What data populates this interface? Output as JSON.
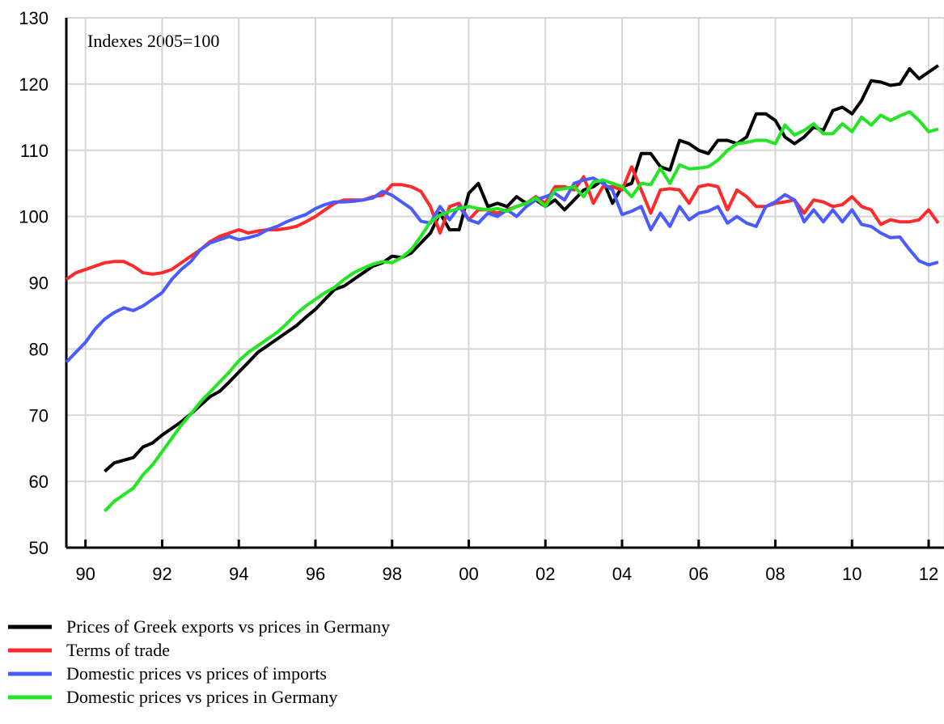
{
  "chart_data": {
    "type": "line",
    "annotation": "Indexes 2005=100",
    "x": [
      1990,
      1990.25,
      1990.5,
      1990.75,
      1991,
      1991.25,
      1991.5,
      1991.75,
      1992,
      1992.25,
      1992.5,
      1992.75,
      1993,
      1993.25,
      1993.5,
      1993.75,
      1994,
      1994.25,
      1994.5,
      1994.75,
      1995,
      1995.25,
      1995.5,
      1995.75,
      1996,
      1996.25,
      1996.5,
      1996.75,
      1997,
      1997.25,
      1997.5,
      1997.75,
      1998,
      1998.25,
      1998.5,
      1998.75,
      1999,
      1999.25,
      1999.5,
      1999.75,
      2000,
      2000.25,
      2000.5,
      2000.75,
      2001,
      2001.25,
      2001.5,
      2001.75,
      2002,
      2002.25,
      2002.5,
      2002.75,
      2003,
      2003.25,
      2003.5,
      2003.75,
      2004,
      2004.25,
      2004.5,
      2004.75,
      2005,
      2005.25,
      2005.5,
      2005.75,
      2006,
      2006.25,
      2006.5,
      2006.75,
      2007,
      2007.25,
      2007.5,
      2007.75,
      2008,
      2008.25,
      2008.5,
      2008.75,
      2009,
      2009.25,
      2009.5,
      2009.75,
      2010,
      2010.25,
      2010.5,
      2010.75,
      2011,
      2011.25,
      2011.5,
      2011.75,
      2012,
      2012.25,
      2012.5,
      2012.75
    ],
    "series": [
      {
        "name": "Prices of Greek exports vs prices in Germany",
        "color": "#000000",
        "values": [
          null,
          null,
          null,
          null,
          61.5,
          62.8,
          63.2,
          63.6,
          65.2,
          65.8,
          67,
          68,
          69,
          70.2,
          71.5,
          72.8,
          73.6,
          75,
          76.5,
          78,
          79.5,
          80.5,
          81.5,
          82.5,
          83.5,
          84.8,
          86,
          87.5,
          89,
          89.5,
          90.5,
          91.5,
          92.5,
          93,
          94,
          93.8,
          94.5,
          96,
          97.5,
          100.5,
          98,
          98,
          103.5,
          105,
          101.5,
          102,
          101.5,
          103,
          102,
          102.5,
          101.5,
          102.5,
          101,
          102.5,
          104,
          104.5,
          105.5,
          102,
          104.5,
          105,
          109.5,
          109.5,
          107.5,
          107,
          111.5,
          111,
          110,
          109.5,
          111.5,
          111.5,
          111,
          112,
          115.5,
          115.5,
          114.5,
          112,
          111,
          112,
          113.5,
          113,
          116,
          116.5,
          115.5,
          117.5,
          120.5,
          120.3,
          119.8,
          120,
          122.3,
          120.8,
          121.8,
          122.8
        ]
      },
      {
        "name": "Terms of trade",
        "color": "#ff2a2a",
        "values": [
          90.5,
          91.5,
          92,
          92.5,
          93,
          93.2,
          93.2,
          92.5,
          91.5,
          91.3,
          91.5,
          92,
          93,
          94,
          95,
          96.2,
          97,
          97.5,
          98,
          97.5,
          97.8,
          98,
          98,
          98.2,
          98.5,
          99.2,
          100,
          101,
          102,
          102.5,
          102.5,
          102.5,
          103,
          103.2,
          104.8,
          104.8,
          104.5,
          103.8,
          101.5,
          97.5,
          101.5,
          102,
          99.5,
          101,
          101,
          100.5,
          101,
          101.5,
          102,
          103,
          102,
          104.5,
          104.5,
          104,
          106,
          102,
          104.5,
          104.5,
          104,
          107.5,
          104,
          100.5,
          104,
          104.2,
          104,
          102,
          104.5,
          104.8,
          104.5,
          101,
          104,
          103,
          101.5,
          101.5,
          102,
          102.2,
          102.5,
          100.5,
          102.5,
          102.2,
          101.5,
          101.8,
          103,
          101.5,
          101,
          98.8,
          99.5,
          99.2,
          99.2,
          99.5,
          101,
          99
        ]
      },
      {
        "name": "Domestic prices vs prices of imports",
        "color": "#4a5cff",
        "values": [
          78,
          79.5,
          81,
          83,
          84.5,
          85.5,
          86.2,
          85.8,
          86.5,
          87.5,
          88.5,
          90.5,
          92,
          93.2,
          95,
          96,
          96.5,
          97,
          96.5,
          96.8,
          97.2,
          98,
          98.5,
          99.2,
          99.8,
          100.3,
          101.2,
          101.8,
          102.2,
          102.2,
          102.3,
          102.5,
          102.8,
          103.8,
          103.2,
          102.2,
          101.2,
          99.3,
          99,
          101.5,
          99.5,
          101.5,
          99.5,
          99,
          100.5,
          100,
          101,
          100,
          101.5,
          102.5,
          103,
          103.5,
          102.5,
          105,
          105.5,
          105.8,
          105,
          104,
          100.3,
          100.8,
          101.5,
          98,
          100.5,
          98.5,
          101.5,
          99.5,
          100.5,
          100.8,
          101.5,
          99,
          100,
          99,
          98.5,
          101.5,
          102.2,
          103.3,
          102.5,
          99.2,
          101,
          99.2,
          101,
          99.2,
          101,
          98.8,
          98.5,
          97.5,
          96.8,
          96.9,
          95,
          93.3,
          92.7,
          93.1
        ]
      },
      {
        "name": "Domestic prices vs prices in Germany",
        "color": "#22e622",
        "values": [
          null,
          null,
          null,
          null,
          55.5,
          57,
          58,
          59,
          61,
          62.5,
          64.5,
          66.5,
          68.5,
          70.2,
          72,
          73.5,
          75,
          76.5,
          78.2,
          79.5,
          80.5,
          81.5,
          82.5,
          83.8,
          85.3,
          86.5,
          87.5,
          88.5,
          89.3,
          90.5,
          91.5,
          92.2,
          92.8,
          93.2,
          93,
          93.8,
          95,
          97,
          99.2,
          100.2,
          100.8,
          101.2,
          101.5,
          101.2,
          101,
          101.2,
          100.8,
          101.5,
          102,
          102.8,
          101.5,
          104,
          104.2,
          104.5,
          103,
          105.2,
          105.5,
          105,
          104.5,
          103,
          105,
          104.8,
          107.3,
          105,
          107.8,
          107.2,
          107.3,
          107.5,
          108.5,
          110,
          111,
          111.2,
          111.5,
          111.5,
          111,
          113.8,
          112.3,
          113,
          114,
          112.5,
          112.5,
          114,
          112.8,
          115,
          113.8,
          115.3,
          114.5,
          115.2,
          115.8,
          114.5,
          112.8,
          113.2
        ]
      }
    ],
    "xlim": [
      1990,
      2012.9
    ],
    "xticks": [
      {
        "value": 1990.5,
        "label": "90"
      },
      {
        "value": 1992.5,
        "label": "92"
      },
      {
        "value": 1994.5,
        "label": "94"
      },
      {
        "value": 1996.5,
        "label": "96"
      },
      {
        "value": 1998.5,
        "label": "98"
      },
      {
        "value": 2000.5,
        "label": "00"
      },
      {
        "value": 2002.5,
        "label": "02"
      },
      {
        "value": 2004.5,
        "label": "04"
      },
      {
        "value": 2006.5,
        "label": "06"
      },
      {
        "value": 2008.5,
        "label": "08"
      },
      {
        "value": 2010.5,
        "label": "10"
      },
      {
        "value": 2012.5,
        "label": "12"
      }
    ],
    "ylim": [
      50,
      130
    ],
    "yticks": [
      50,
      60,
      70,
      80,
      90,
      100,
      110,
      120,
      130
    ],
    "grid": true
  }
}
